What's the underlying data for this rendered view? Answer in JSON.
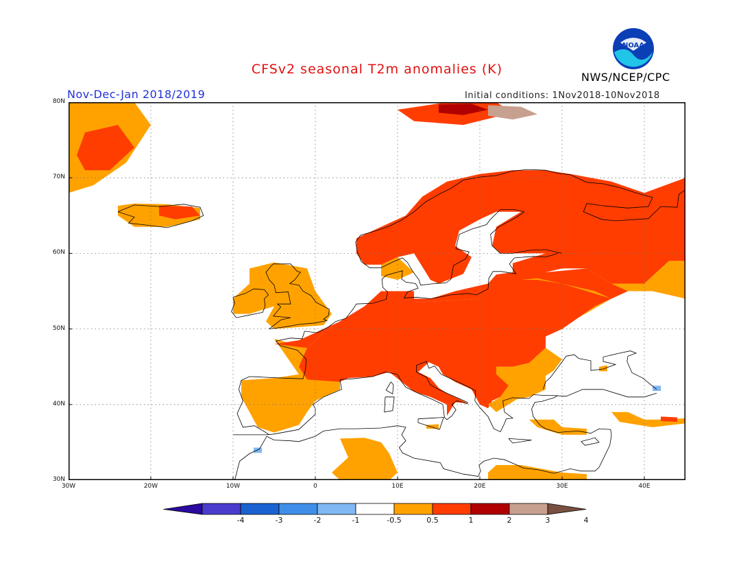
{
  "header": {
    "title": "CFSv2 seasonal T2m anomalies (K)",
    "period": "Nov-Dec-Jan 2018/2019",
    "initial_conditions": "Initial conditions: 1Nov2018-10Nov2018",
    "agency": "NWS/NCEP/CPC",
    "logo_text": "NOAA"
  },
  "map": {
    "lon_range": [
      -30,
      45
    ],
    "lat_range": [
      30,
      80
    ],
    "lat_ticks": [
      {
        "value": 80,
        "label": "80N"
      },
      {
        "value": 70,
        "label": "70N"
      },
      {
        "value": 60,
        "label": "60N"
      },
      {
        "value": 50,
        "label": "50N"
      },
      {
        "value": 40,
        "label": "40N"
      },
      {
        "value": 30,
        "label": "30N"
      }
    ],
    "lon_ticks": [
      {
        "value": -30,
        "label": "30W"
      },
      {
        "value": -20,
        "label": "20W"
      },
      {
        "value": -10,
        "label": "10W"
      },
      {
        "value": 0,
        "label": "0"
      },
      {
        "value": 10,
        "label": "10E"
      },
      {
        "value": 20,
        "label": "20E"
      },
      {
        "value": 30,
        "label": "30E"
      },
      {
        "value": 40,
        "label": "40E"
      }
    ],
    "gridlines": true,
    "anomaly_regions": [
      {
        "level": 1,
        "lonlat": [
          [
            -30,
            80
          ],
          [
            -22,
            80
          ],
          [
            -20,
            77
          ],
          [
            -23,
            72
          ],
          [
            -27,
            69
          ],
          [
            -30,
            68
          ]
        ]
      },
      {
        "level": 2,
        "lonlat": [
          [
            -28,
            76
          ],
          [
            -24,
            77
          ],
          [
            -22,
            74
          ],
          [
            -25,
            71
          ],
          [
            -28,
            71
          ],
          [
            -29,
            73
          ]
        ]
      },
      {
        "level": 1,
        "lonlat": [
          [
            -24,
            66.3
          ],
          [
            -22,
            66.6
          ],
          [
            -18,
            66.5
          ],
          [
            -14,
            66
          ],
          [
            -14,
            64.5
          ],
          [
            -18,
            63.5
          ],
          [
            -22,
            63.5
          ],
          [
            -24,
            65
          ]
        ]
      },
      {
        "level": 2,
        "lonlat": [
          [
            -19,
            66.3
          ],
          [
            -15,
            66.2
          ],
          [
            -14,
            65
          ],
          [
            -17,
            64.5
          ],
          [
            -19,
            65
          ]
        ]
      },
      {
        "level": 2,
        "lonlat": [
          [
            10,
            79
          ],
          [
            16,
            80
          ],
          [
            22,
            80
          ],
          [
            24,
            78.6
          ],
          [
            18,
            77
          ],
          [
            12,
            77.5
          ]
        ]
      },
      {
        "level": 3,
        "lonlat": [
          [
            15,
            79.7
          ],
          [
            19,
            79.8
          ],
          [
            21,
            79
          ],
          [
            18,
            78.3
          ],
          [
            15,
            78.6
          ]
        ]
      },
      {
        "level": 4,
        "lonlat": [
          [
            21,
            79.6
          ],
          [
            25,
            79.4
          ],
          [
            27,
            78.4
          ],
          [
            24,
            77.7
          ],
          [
            21,
            78.2
          ]
        ]
      },
      {
        "level": 1,
        "lonlat": [
          [
            -8,
            58
          ],
          [
            -5,
            58.8
          ],
          [
            -1,
            58
          ],
          [
            0,
            55
          ],
          [
            2,
            52
          ],
          [
            1,
            50.5
          ],
          [
            -5,
            50
          ],
          [
            -6,
            51
          ],
          [
            -5,
            53
          ],
          [
            -8,
            52
          ],
          [
            -10,
            52
          ],
          [
            -10,
            54
          ],
          [
            -8,
            56
          ]
        ]
      },
      {
        "level": 1,
        "lonlat": [
          [
            -5,
            48.7
          ],
          [
            -1,
            47.5
          ],
          [
            -2,
            45
          ],
          [
            -1,
            43.3
          ],
          [
            3,
            43.4
          ],
          [
            3,
            42
          ],
          [
            0,
            40.5
          ],
          [
            -1,
            39
          ],
          [
            -2,
            37.3
          ],
          [
            -5,
            36.3
          ],
          [
            -7,
            37
          ],
          [
            -8,
            39
          ],
          [
            -9,
            41
          ],
          [
            -9,
            43.2
          ],
          [
            -5,
            43.5
          ],
          [
            -2,
            44
          ]
        ]
      },
      {
        "level": 2,
        "lonlat": [
          [
            -1,
            47.5
          ],
          [
            1,
            49.5
          ],
          [
            3,
            51
          ],
          [
            6,
            53
          ],
          [
            8,
            55
          ],
          [
            12,
            55
          ],
          [
            12,
            53.5
          ],
          [
            20,
            54
          ],
          [
            24,
            54
          ],
          [
            27,
            56
          ],
          [
            28,
            57.5
          ],
          [
            30,
            58
          ],
          [
            33,
            58
          ],
          [
            36,
            56
          ],
          [
            38,
            55
          ],
          [
            40,
            56
          ],
          [
            43,
            59
          ],
          [
            45,
            59
          ],
          [
            45,
            70
          ],
          [
            40,
            68
          ],
          [
            36,
            69.5
          ],
          [
            31,
            70.5
          ],
          [
            28,
            71
          ],
          [
            24,
            71
          ],
          [
            20,
            70.5
          ],
          [
            16,
            69.5
          ],
          [
            13,
            67.5
          ],
          [
            11,
            65
          ],
          [
            8,
            63.5
          ],
          [
            5,
            62
          ],
          [
            5,
            60
          ],
          [
            6,
            58.5
          ],
          [
            8,
            58.5
          ],
          [
            10,
            59.5
          ],
          [
            12,
            60
          ],
          [
            14,
            56.5
          ],
          [
            15,
            56
          ],
          [
            18,
            57.3
          ],
          [
            19,
            59.5
          ],
          [
            17,
            61
          ],
          [
            17.5,
            63
          ],
          [
            20,
            64.5
          ],
          [
            22,
            65.5
          ],
          [
            25,
            65.5
          ],
          [
            22,
            63.5
          ],
          [
            21.5,
            61
          ],
          [
            22.5,
            60
          ],
          [
            28,
            60
          ],
          [
            24,
            58.7
          ],
          [
            24,
            57.5
          ],
          [
            22,
            57.2
          ],
          [
            21,
            56
          ],
          [
            17,
            55
          ],
          [
            14,
            54
          ],
          [
            11,
            54
          ],
          [
            10,
            55
          ],
          [
            8,
            55
          ],
          [
            7,
            53.5
          ],
          [
            5,
            52
          ],
          [
            3,
            51
          ],
          [
            1,
            50
          ],
          [
            -2,
            48.5
          ],
          [
            -5,
            48
          ]
        ]
      },
      {
        "level": 2,
        "lonlat": [
          [
            -1,
            47.5
          ],
          [
            -2,
            45
          ],
          [
            -1,
            43.3
          ],
          [
            3,
            43
          ],
          [
            4,
            43.5
          ],
          [
            7,
            43.7
          ],
          [
            9,
            44.3
          ],
          [
            10.5,
            43
          ],
          [
            12,
            41.7
          ],
          [
            14,
            41
          ],
          [
            16,
            40
          ],
          [
            16,
            38.5
          ],
          [
            17,
            40.3
          ],
          [
            18.5,
            40.2
          ],
          [
            16,
            41.5
          ],
          [
            15,
            42.2
          ],
          [
            14,
            43.5
          ],
          [
            12.5,
            44.3
          ],
          [
            13.8,
            45.6
          ],
          [
            15,
            45
          ],
          [
            15.5,
            44
          ],
          [
            17,
            43
          ],
          [
            19,
            42
          ],
          [
            20,
            40
          ],
          [
            21,
            39.5
          ],
          [
            21.5,
            40.5
          ],
          [
            22.5,
            41
          ],
          [
            23.5,
            42.5
          ],
          [
            22.5,
            44
          ],
          [
            22,
            45
          ],
          [
            24,
            45
          ],
          [
            26,
            45.5
          ],
          [
            28,
            47.5
          ],
          [
            28,
            49
          ],
          [
            30,
            50
          ],
          [
            32,
            51.5
          ],
          [
            34,
            53
          ],
          [
            36,
            54
          ],
          [
            38,
            55
          ],
          [
            36,
            56
          ],
          [
            33,
            58
          ],
          [
            28,
            57.5
          ],
          [
            24,
            54
          ],
          [
            20,
            54
          ],
          [
            12,
            53.5
          ],
          [
            12,
            55
          ],
          [
            8,
            55
          ],
          [
            6,
            53
          ],
          [
            3,
            51
          ],
          [
            1,
            49.5
          ]
        ]
      },
      {
        "level": 1,
        "lonlat": [
          [
            25,
            56.5
          ],
          [
            27,
            56.7
          ],
          [
            30,
            56
          ],
          [
            33,
            55
          ],
          [
            36,
            54
          ],
          [
            32,
            51.5
          ],
          [
            30,
            50
          ],
          [
            28,
            49
          ],
          [
            28,
            47.5
          ],
          [
            30,
            46
          ],
          [
            29,
            44.5
          ],
          [
            28,
            43.8
          ],
          [
            28,
            42
          ],
          [
            26,
            41
          ],
          [
            24.5,
            40.7
          ],
          [
            22,
            39
          ],
          [
            21,
            40
          ],
          [
            22.5,
            41
          ],
          [
            23.5,
            42.5
          ],
          [
            22,
            44
          ],
          [
            22,
            45
          ],
          [
            24,
            45
          ],
          [
            26,
            45.5
          ],
          [
            28,
            47.5
          ],
          [
            28,
            49
          ],
          [
            30,
            50
          ],
          [
            32,
            51.5
          ],
          [
            34,
            53
          ],
          [
            36,
            54
          ],
          [
            34,
            55
          ],
          [
            30,
            56
          ],
          [
            27,
            56.5
          ]
        ]
      },
      {
        "level": 1,
        "lonlat": [
          [
            8,
            58.5
          ],
          [
            10,
            59.5
          ],
          [
            12,
            57.5
          ],
          [
            10,
            56.5
          ],
          [
            8,
            57
          ]
        ]
      },
      {
        "level": 1,
        "lonlat": [
          [
            36,
            56
          ],
          [
            40,
            56
          ],
          [
            43,
            59
          ],
          [
            45,
            59
          ],
          [
            45,
            54
          ],
          [
            41,
            55
          ],
          [
            38,
            55
          ]
        ]
      },
      {
        "level": 1,
        "lonlat": [
          [
            36,
            39
          ],
          [
            38,
            39
          ],
          [
            40,
            38
          ],
          [
            43,
            38
          ],
          [
            45,
            38.2
          ],
          [
            45,
            37.5
          ],
          [
            41,
            37
          ],
          [
            37,
            37.7
          ]
        ]
      },
      {
        "level": 2,
        "lonlat": [
          [
            42,
            38.4
          ],
          [
            44,
            38.3
          ],
          [
            44,
            37.7
          ],
          [
            42,
            37.8
          ]
        ]
      },
      {
        "level": 1,
        "lonlat": [
          [
            26,
            38
          ],
          [
            29,
            38
          ],
          [
            30,
            37
          ],
          [
            33,
            36.8
          ],
          [
            33,
            36
          ],
          [
            30,
            36
          ],
          [
            27,
            37
          ]
        ]
      },
      {
        "level": 1,
        "lonlat": [
          [
            3,
            35.5
          ],
          [
            6,
            35.6
          ],
          [
            8,
            35
          ],
          [
            9,
            33.5
          ],
          [
            10,
            31
          ],
          [
            9,
            30
          ],
          [
            3,
            30
          ],
          [
            2,
            31
          ],
          [
            4,
            33
          ]
        ]
      },
      {
        "level": 1,
        "lonlat": [
          [
            22,
            32
          ],
          [
            25,
            32
          ],
          [
            30,
            31
          ],
          [
            33,
            30.8
          ],
          [
            33,
            30
          ],
          [
            21,
            30
          ],
          [
            21,
            31
          ]
        ]
      },
      {
        "level": 1,
        "lonlat": [
          [
            34.5,
            45
          ],
          [
            35.5,
            45.2
          ],
          [
            35.5,
            44.4
          ],
          [
            34.5,
            44.4
          ]
        ]
      },
      {
        "level": 1,
        "lonlat": [
          [
            13.5,
            37.3
          ],
          [
            15,
            37.4
          ],
          [
            15,
            36.8
          ],
          [
            13.5,
            36.8
          ]
        ]
      },
      {
        "level": -1,
        "lonlat": [
          [
            -7.5,
            34.3
          ],
          [
            -6.5,
            34.3
          ],
          [
            -6.5,
            33.6
          ],
          [
            -7.5,
            33.6
          ]
        ]
      },
      {
        "level": -1,
        "lonlat": [
          [
            41,
            42.5
          ],
          [
            42,
            42.5
          ],
          [
            42,
            41.8
          ],
          [
            41,
            41.8
          ]
        ]
      }
    ]
  },
  "colorbar": {
    "labels": [
      "-4",
      "-3",
      "-2",
      "-1",
      "-0.5",
      "0.5",
      "1",
      "2",
      "3",
      "4"
    ],
    "colors": [
      "#2a0aa0",
      "#4a3ccc",
      "#1a62d0",
      "#3f8fe8",
      "#7fb8f2",
      "#ffffff",
      "#ffa200",
      "#ff3d00",
      "#b00000",
      "#c8a090",
      "#795040"
    ]
  }
}
